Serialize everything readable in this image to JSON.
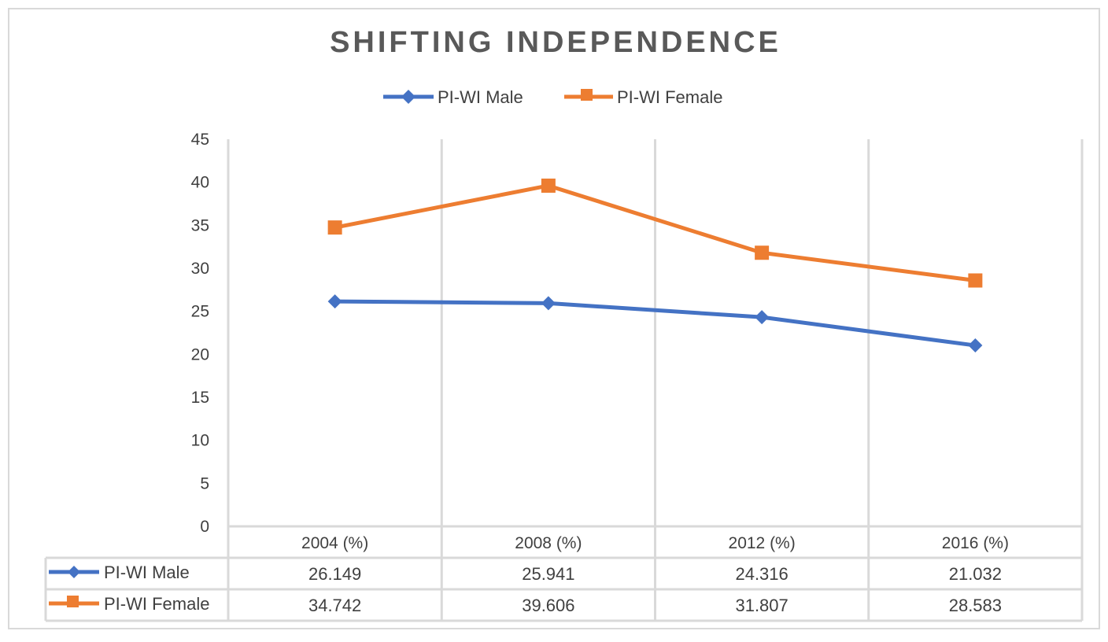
{
  "chart_data": {
    "type": "line",
    "title": "SHIFTING INDEPENDENCE",
    "categories": [
      "2004 (%)",
      "2008 (%)",
      "2012 (%)",
      "2016 (%)"
    ],
    "series": [
      {
        "name": "PI-WI Male",
        "values": [
          26.149,
          25.941,
          24.316,
          21.032
        ],
        "color": "#4472c4",
        "marker": "diamond",
        "labels": [
          "26.149",
          "25.941",
          "24.316",
          "21.032"
        ]
      },
      {
        "name": "PI-WI Female",
        "values": [
          34.742,
          39.606,
          31.807,
          28.583
        ],
        "color": "#ed7d31",
        "marker": "square",
        "labels": [
          "34.742",
          "39.606",
          "31.807",
          "28.583"
        ]
      }
    ],
    "ylim": [
      0,
      45
    ],
    "yticks": [
      "0",
      "5",
      "10",
      "15",
      "20",
      "25",
      "30",
      "35",
      "40",
      "45"
    ],
    "grid": "vertical",
    "legend": "top",
    "data_table": true,
    "gridline_color": "#d9d9d9",
    "text_color": "#404040"
  }
}
